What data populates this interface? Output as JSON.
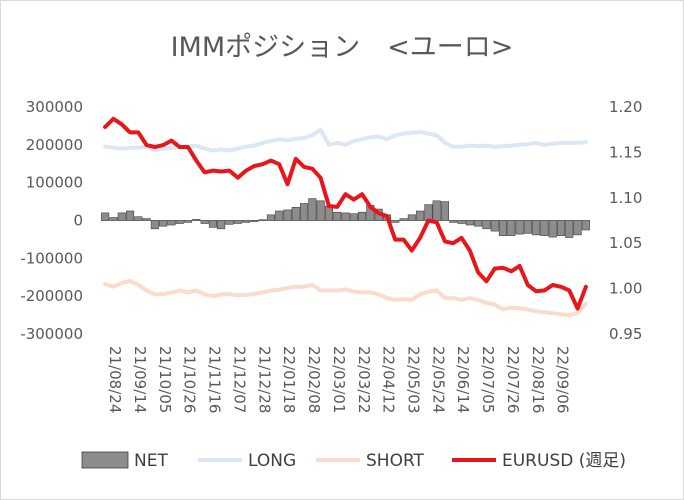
{
  "chart_data": {
    "type": "bar+line",
    "title": "IMMポジション　<ユーロ>",
    "x_tick_labels": [
      "21/08/24",
      "21/09/14",
      "21/10/05",
      "21/10/26",
      "21/11/16",
      "21/12/07",
      "21/12/28",
      "22/01/18",
      "22/02/08",
      "22/03/01",
      "22/03/22",
      "22/04/12",
      "22/05/03",
      "22/05/24",
      "22/06/14",
      "22/07/05",
      "22/07/26",
      "22/08/16",
      "22/09/06"
    ],
    "y_left": {
      "range": [
        -300000,
        300000
      ],
      "ticks": [
        300000,
        200000,
        100000,
        0,
        -100000,
        -200000,
        -300000
      ],
      "tick_labels": [
        "300000",
        "200000",
        "100000",
        "0",
        "-100000",
        "-200000",
        "-300000"
      ]
    },
    "y_right": {
      "range": [
        0.95,
        1.2
      ],
      "ticks": [
        1.2,
        1.15,
        1.1,
        1.05,
        1.0,
        0.95
      ],
      "tick_labels": [
        "1.20",
        "1.15",
        "1.10",
        "1.05",
        "1.00",
        "0.95"
      ]
    },
    "legend": [
      "NET",
      "LONG",
      "SHORT",
      "EURUSD (週足)"
    ],
    "series": [
      {
        "name": "NET",
        "type": "bar",
        "axis": "left",
        "color": "#8c8c8c",
        "values": [
          20000,
          8000,
          20000,
          25000,
          10000,
          5000,
          -22000,
          -15000,
          -12000,
          -8000,
          -5000,
          3000,
          -8000,
          -18000,
          -22000,
          -10000,
          -8000,
          -5000,
          -3000,
          2000,
          15000,
          25000,
          28000,
          35000,
          45000,
          58000,
          52000,
          38000,
          22000,
          20000,
          18000,
          22000,
          40000,
          30000,
          15000,
          -5000,
          5000,
          15000,
          25000,
          42000,
          52000,
          50000,
          -5000,
          -8000,
          -12000,
          -15000,
          -22000,
          -28000,
          -40000,
          -40000,
          -36000,
          -34000,
          -38000,
          -40000,
          -44000,
          -40000,
          -45000,
          -38000,
          -25000
        ]
      },
      {
        "name": "LONG",
        "type": "line",
        "axis": "left",
        "color": "#dbe7f3",
        "values": [
          195000,
          193000,
          190000,
          192000,
          193000,
          195000,
          185000,
          190000,
          192000,
          195000,
          196000,
          198000,
          190000,
          185000,
          188000,
          185000,
          190000,
          195000,
          198000,
          205000,
          210000,
          215000,
          212000,
          216000,
          218000,
          225000,
          240000,
          200000,
          205000,
          200000,
          210000,
          215000,
          220000,
          222000,
          215000,
          225000,
          230000,
          232000,
          234000,
          230000,
          225000,
          205000,
          195000,
          195000,
          198000,
          196000,
          198000,
          195000,
          196000,
          198000,
          200000,
          202000,
          205000,
          200000,
          203000,
          205000,
          204000,
          206000,
          207000
        ]
      },
      {
        "name": "SHORT",
        "type": "line",
        "axis": "left",
        "color": "#f9dccb",
        "values": [
          -168000,
          -175000,
          -165000,
          -160000,
          -170000,
          -185000,
          -195000,
          -195000,
          -190000,
          -185000,
          -190000,
          -185000,
          -195000,
          -200000,
          -195000,
          -195000,
          -198000,
          -197000,
          -194000,
          -190000,
          -185000,
          -183000,
          -178000,
          -175000,
          -175000,
          -170000,
          -185000,
          -185000,
          -185000,
          -182000,
          -188000,
          -190000,
          -190000,
          -195000,
          -205000,
          -210000,
          -208000,
          -210000,
          -195000,
          -188000,
          -185000,
          -205000,
          -205000,
          -210000,
          -205000,
          -210000,
          -218000,
          -222000,
          -235000,
          -230000,
          -232000,
          -235000,
          -240000,
          -242000,
          -245000,
          -248000,
          -250000,
          -245000,
          -220000
        ]
      },
      {
        "name": "EURUSD (週足)",
        "type": "line",
        "axis": "right",
        "color": "#e8151b",
        "values": [
          1.178,
          1.187,
          1.181,
          1.172,
          1.172,
          1.158,
          1.156,
          1.158,
          1.163,
          1.156,
          1.156,
          1.141,
          1.128,
          1.13,
          1.129,
          1.13,
          1.122,
          1.13,
          1.135,
          1.137,
          1.141,
          1.137,
          1.115,
          1.143,
          1.134,
          1.132,
          1.122,
          1.091,
          1.09,
          1.104,
          1.098,
          1.104,
          1.09,
          1.083,
          1.08,
          1.054,
          1.054,
          1.042,
          1.056,
          1.075,
          1.073,
          1.052,
          1.05,
          1.056,
          1.042,
          1.018,
          1.008,
          1.022,
          1.023,
          1.019,
          1.025,
          1.004,
          0.997,
          0.998,
          1.004,
          1.002,
          0.998,
          0.978,
          1.002
        ]
      }
    ]
  }
}
